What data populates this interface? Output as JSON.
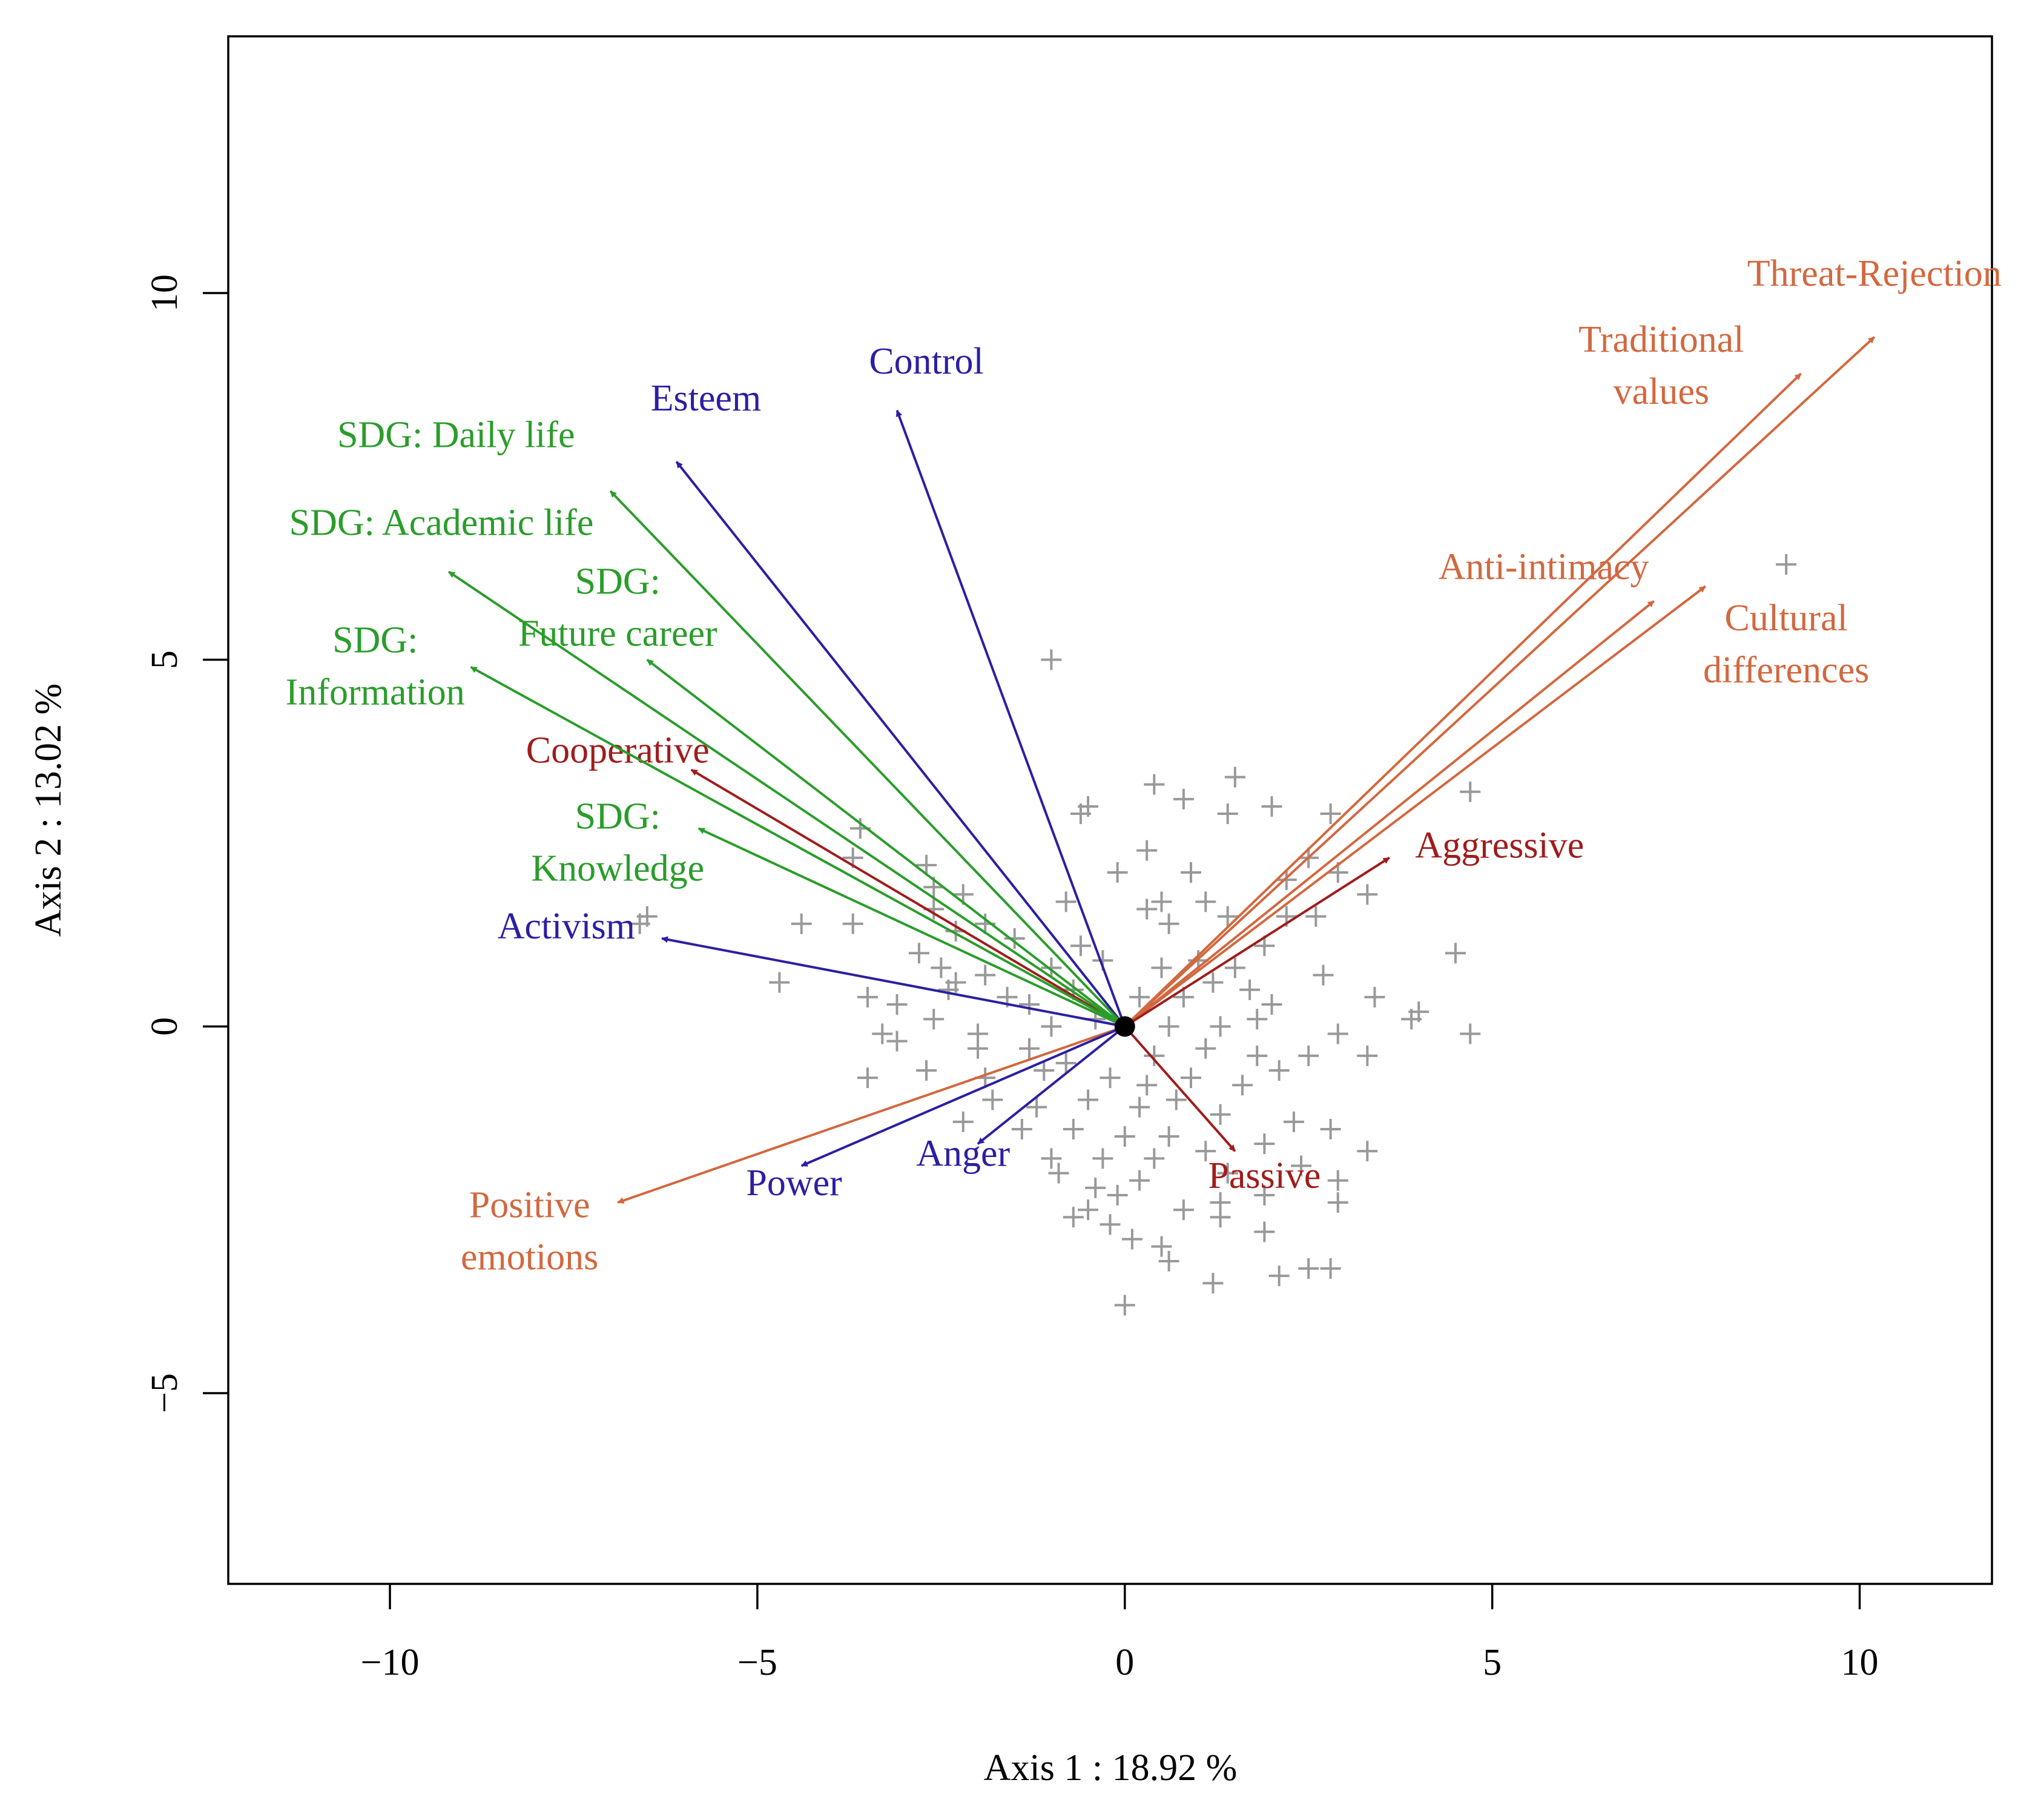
{
  "chart_data": {
    "type": "scatter",
    "subtype": "biplot",
    "title": "",
    "xlabel": "Axis 1 : 18.92 %",
    "ylabel": "Axis 2 : 13.02 %",
    "xlim": [
      -12.2,
      11.8
    ],
    "ylim": [
      -7.6,
      13.5
    ],
    "x_ticks": [
      -10,
      -5,
      0,
      5,
      10
    ],
    "y_ticks": [
      -5,
      0,
      5,
      10
    ],
    "x_tick_labels": [
      "−10",
      "−5",
      "0",
      "5",
      "10"
    ],
    "y_tick_labels": [
      "−5",
      "0",
      "5",
      "10"
    ],
    "origin": [
      0,
      0
    ],
    "colors": {
      "behavior": "#a01c1c",
      "motive": "#2b1fa3",
      "sdg": "#2a9d2a",
      "attitude": "#d2683f",
      "points": "#999999"
    },
    "vectors": [
      {
        "label": [
          "Threat-Rejection"
        ],
        "x": 10.2,
        "y": 9.4,
        "group": "attitude",
        "lx": 10.2,
        "ly": 10.1
      },
      {
        "label": [
          "Traditional",
          "values"
        ],
        "x": 9.2,
        "y": 8.9,
        "group": "attitude",
        "lx": 7.3,
        "ly": 9.2
      },
      {
        "label": [
          "Anti-intimacy"
        ],
        "x": 7.2,
        "y": 5.8,
        "group": "attitude",
        "lx": 5.7,
        "ly": 6.1
      },
      {
        "label": [
          "Cultural",
          "differences"
        ],
        "x": 7.9,
        "y": 6.0,
        "group": "attitude",
        "lx": 9.0,
        "ly": 5.4
      },
      {
        "label": [
          "Positive",
          "emotions"
        ],
        "x": -6.9,
        "y": -2.4,
        "group": "attitude",
        "lx": -8.1,
        "ly": -2.6
      },
      {
        "label": [
          "Aggressive"
        ],
        "x": 3.6,
        "y": 2.3,
        "group": "behavior",
        "lx": 5.1,
        "ly": 2.3
      },
      {
        "label": [
          "Passive"
        ],
        "x": 1.5,
        "y": -1.7,
        "group": "behavior",
        "lx": 1.9,
        "ly": -2.2
      },
      {
        "label": [
          "Cooperative"
        ],
        "x": -5.9,
        "y": 3.5,
        "group": "behavior",
        "lx": -6.9,
        "ly": 3.6
      },
      {
        "label": [
          "Control"
        ],
        "x": -3.1,
        "y": 8.4,
        "group": "motive",
        "lx": -2.7,
        "ly": 8.9
      },
      {
        "label": [
          "Esteem"
        ],
        "x": -6.1,
        "y": 7.7,
        "group": "motive",
        "lx": -5.7,
        "ly": 8.4
      },
      {
        "label": [
          "Activism"
        ],
        "x": -6.3,
        "y": 1.2,
        "group": "motive",
        "lx": -7.6,
        "ly": 1.2
      },
      {
        "label": [
          "Power"
        ],
        "x": -4.4,
        "y": -1.9,
        "group": "motive",
        "lx": -4.5,
        "ly": -2.3
      },
      {
        "label": [
          "Anger"
        ],
        "x": -2.0,
        "y": -1.6,
        "group": "motive",
        "lx": -2.2,
        "ly": -1.9
      },
      {
        "label": [
          "SDG: Daily life"
        ],
        "x": -7.0,
        "y": 7.3,
        "group": "sdg",
        "lx": -9.1,
        "ly": 7.9
      },
      {
        "label": [
          "SDG: Academic life"
        ],
        "x": -9.2,
        "y": 6.2,
        "group": "sdg",
        "lx": -9.3,
        "ly": 6.7
      },
      {
        "label": [
          "SDG:",
          "Future career"
        ],
        "x": -6.5,
        "y": 5.0,
        "group": "sdg",
        "lx": -6.9,
        "ly": 5.9
      },
      {
        "label": [
          "SDG:",
          "Information"
        ],
        "x": -8.9,
        "y": 4.9,
        "group": "sdg",
        "lx": -10.2,
        "ly": 5.1
      },
      {
        "label": [
          "SDG:",
          "Knowledge"
        ],
        "x": -5.8,
        "y": 2.7,
        "group": "sdg",
        "lx": -6.9,
        "ly": 2.7
      }
    ],
    "points": [
      [
        9.0,
        6.3
      ],
      [
        -1.0,
        5.0
      ],
      [
        1.5,
        3.4
      ],
      [
        0.4,
        3.3
      ],
      [
        -0.5,
        3.0
      ],
      [
        0.8,
        3.1
      ],
      [
        -0.6,
        2.9
      ],
      [
        2.0,
        3.0
      ],
      [
        1.4,
        2.9
      ],
      [
        2.8,
        2.9
      ],
      [
        4.7,
        3.2
      ],
      [
        -3.6,
        2.7
      ],
      [
        0.3,
        2.4
      ],
      [
        -3.7,
        2.3
      ],
      [
        -2.7,
        2.2
      ],
      [
        2.5,
        2.3
      ],
      [
        2.9,
        2.1
      ],
      [
        3.3,
        1.8
      ],
      [
        -0.1,
        2.1
      ],
      [
        0.9,
        2.1
      ],
      [
        2.2,
        2.0
      ],
      [
        -2.6,
        1.9
      ],
      [
        -2.2,
        1.8
      ],
      [
        1.1,
        1.7
      ],
      [
        2.6,
        1.5
      ],
      [
        0.3,
        1.6
      ],
      [
        0.5,
        1.7
      ],
      [
        -2.6,
        1.6
      ],
      [
        -0.8,
        1.7
      ],
      [
        -4.4,
        1.4
      ],
      [
        -3.7,
        1.4
      ],
      [
        -1.9,
        1.4
      ],
      [
        -6.6,
        1.4
      ],
      [
        -6.5,
        1.5
      ],
      [
        -2.3,
        1.3
      ],
      [
        -1.5,
        1.2
      ],
      [
        -0.6,
        1.1
      ],
      [
        0.6,
        1.4
      ],
      [
        1.4,
        1.5
      ],
      [
        2.2,
        1.5
      ],
      [
        1.9,
        1.1
      ],
      [
        4.5,
        1.0
      ],
      [
        -2.8,
        1.0
      ],
      [
        -2.5,
        0.8
      ],
      [
        -2.3,
        0.6
      ],
      [
        -1.9,
        0.7
      ],
      [
        -1.0,
        0.8
      ],
      [
        -0.3,
        0.9
      ],
      [
        0.5,
        0.8
      ],
      [
        1.0,
        0.9
      ],
      [
        1.5,
        0.8
      ],
      [
        2.7,
        0.7
      ],
      [
        -3.5,
        0.4
      ],
      [
        -3.1,
        0.3
      ],
      [
        -2.4,
        0.5
      ],
      [
        -1.6,
        0.4
      ],
      [
        -1.3,
        0.3
      ],
      [
        -0.7,
        0.5
      ],
      [
        0.2,
        0.4
      ],
      [
        0.8,
        0.4
      ],
      [
        1.2,
        0.6
      ],
      [
        1.7,
        0.5
      ],
      [
        2.0,
        0.3
      ],
      [
        3.4,
        0.4
      ],
      [
        4.0,
        0.2
      ],
      [
        -4.7,
        0.6
      ],
      [
        -3.3,
        -0.1
      ],
      [
        -2.6,
        0.1
      ],
      [
        -2.0,
        -0.1
      ],
      [
        -1.0,
        0.0
      ],
      [
        -0.4,
        0.1
      ],
      [
        0.6,
        0.0
      ],
      [
        1.3,
        0.0
      ],
      [
        1.8,
        0.1
      ],
      [
        2.9,
        -0.1
      ],
      [
        3.9,
        0.1
      ],
      [
        4.7,
        -0.1
      ],
      [
        -3.1,
        -0.2
      ],
      [
        -2.0,
        -0.3
      ],
      [
        -1.3,
        -0.3
      ],
      [
        -0.8,
        -0.5
      ],
      [
        0.4,
        -0.4
      ],
      [
        1.1,
        -0.3
      ],
      [
        1.8,
        -0.4
      ],
      [
        2.5,
        -0.4
      ],
      [
        3.3,
        -0.4
      ],
      [
        -3.5,
        -0.7
      ],
      [
        -2.7,
        -0.6
      ],
      [
        -1.9,
        -0.7
      ],
      [
        -1.1,
        -0.6
      ],
      [
        -0.2,
        -0.7
      ],
      [
        0.3,
        -0.8
      ],
      [
        0.9,
        -0.7
      ],
      [
        1.6,
        -0.8
      ],
      [
        2.1,
        -0.6
      ],
      [
        -1.8,
        -1.0
      ],
      [
        -1.2,
        -1.1
      ],
      [
        -0.5,
        -1.0
      ],
      [
        0.2,
        -1.1
      ],
      [
        0.7,
        -1.0
      ],
      [
        1.3,
        -1.2
      ],
      [
        2.3,
        -1.3
      ],
      [
        2.8,
        -1.4
      ],
      [
        -2.2,
        -1.3
      ],
      [
        -1.4,
        -1.4
      ],
      [
        -0.7,
        -1.4
      ],
      [
        0.0,
        -1.5
      ],
      [
        0.6,
        -1.5
      ],
      [
        1.9,
        -1.6
      ],
      [
        3.3,
        -1.7
      ],
      [
        -1.0,
        -1.8
      ],
      [
        -0.3,
        -1.8
      ],
      [
        0.4,
        -1.8
      ],
      [
        1.1,
        -1.7
      ],
      [
        2.4,
        -1.9
      ],
      [
        -0.9,
        -2.0
      ],
      [
        -0.4,
        -2.2
      ],
      [
        0.2,
        -2.1
      ],
      [
        1.4,
        -2.0
      ],
      [
        2.9,
        -2.1
      ],
      [
        -0.1,
        -2.3
      ],
      [
        1.3,
        -2.4
      ],
      [
        1.9,
        -2.3
      ],
      [
        2.9,
        -2.4
      ],
      [
        -0.5,
        -2.5
      ],
      [
        -0.2,
        -2.7
      ],
      [
        0.8,
        -2.5
      ],
      [
        1.3,
        -2.6
      ],
      [
        1.9,
        -2.8
      ],
      [
        -0.7,
        -2.6
      ],
      [
        0.1,
        -2.9
      ],
      [
        0.5,
        -3.0
      ],
      [
        0.6,
        -3.2
      ],
      [
        2.8,
        -3.3
      ],
      [
        2.1,
        -3.4
      ],
      [
        2.5,
        -3.3
      ],
      [
        1.2,
        -3.5
      ],
      [
        0.0,
        -3.8
      ]
    ]
  }
}
